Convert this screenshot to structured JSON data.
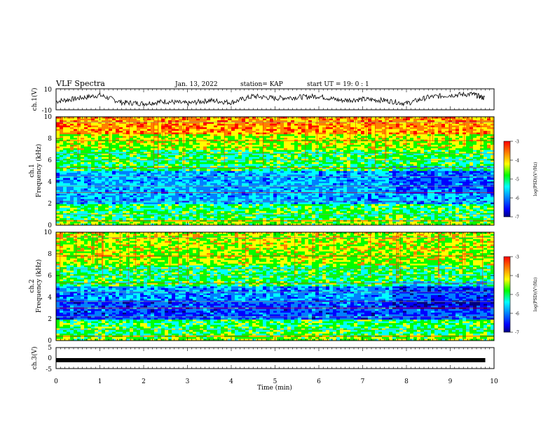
{
  "header": {
    "title": "VLF Spectra",
    "date": "Jan. 13, 2022",
    "station": "station= KAP",
    "start_ut": "start  UT =   19: 0  : 1"
  },
  "colorbar": {
    "label": "log(PSD)(V²/Hz)",
    "ticks": [
      "-3",
      "-4",
      "-5",
      "-6",
      "-7"
    ],
    "colors": [
      "#ff0000",
      "#ff8000",
      "#ffff00",
      "#00ff00",
      "#00ffff",
      "#0080ff",
      "#0000ff",
      "#000080"
    ]
  },
  "chart_data": [
    {
      "type": "line",
      "panel": "ch1-waveform",
      "ylabel": "ch.1(V)",
      "ylim": [
        -10,
        10
      ],
      "ytick_labels": [
        "10",
        "-10"
      ],
      "x": [
        0,
        0.5,
        1,
        1.5,
        2,
        2.5,
        3,
        3.5,
        4,
        4.5,
        5,
        5.5,
        6,
        6.5,
        7,
        7.5,
        8,
        8.5,
        9,
        9.5,
        9.8
      ],
      "values": [
        -2,
        1,
        4,
        -3,
        -4,
        -2,
        -4,
        -1,
        -3,
        3,
        1,
        2,
        3,
        -1,
        0,
        -1,
        -4,
        2,
        4,
        5,
        1
      ]
    },
    {
      "type": "heatmap",
      "panel": "ch1-spectrogram",
      "side_label": "ch.1",
      "ylabel": "Frequency (kHz)",
      "ylim": [
        0,
        10
      ],
      "ytick_labels": [
        "0",
        "2",
        "4",
        "6",
        "8",
        "10"
      ]
    },
    {
      "type": "heatmap",
      "panel": "ch2-spectrogram",
      "side_label": "ch.2",
      "ylabel": "Frequency (kHz)",
      "ylim": [
        0,
        10
      ],
      "ytick_labels": [
        "0",
        "2",
        "4",
        "6",
        "8",
        "10"
      ]
    },
    {
      "type": "line",
      "panel": "ch3-waveform",
      "ylabel": "ch.3(V)",
      "ylim": [
        -5,
        5
      ],
      "ytick_labels": [
        "5",
        "0",
        "-5"
      ],
      "x": [
        0,
        9.8
      ],
      "values": [
        -1,
        -1
      ]
    }
  ],
  "x_axis": {
    "label": "Time  (min)",
    "xlim": [
      0,
      10
    ],
    "tick_labels": [
      "0",
      "1",
      "2",
      "3",
      "4",
      "5",
      "6",
      "7",
      "8",
      "9",
      "10"
    ]
  }
}
